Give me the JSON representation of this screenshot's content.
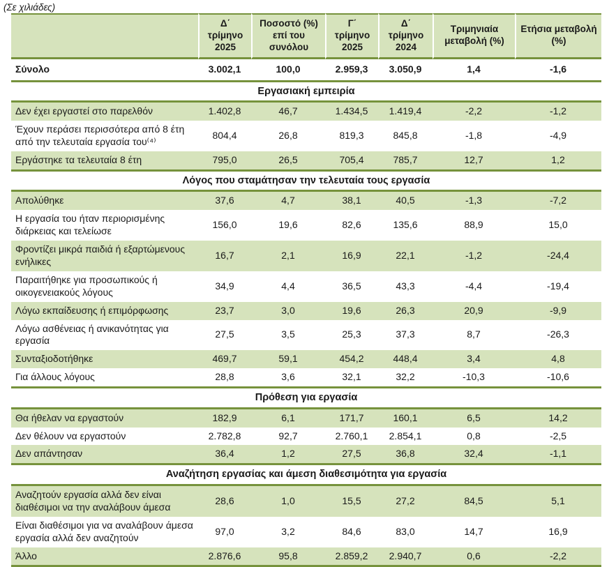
{
  "caption": "(Σε χιλιάδες)",
  "colors": {
    "header_bg": "#d6e3bc",
    "row_highlight_bg": "#d6e3bc",
    "rule_olive": "#76923c",
    "text": "#1a1a1a"
  },
  "columns": [
    "",
    "Δ΄ τρίμηνο 2025",
    "Ποσοστό (%) επί του συνόλου",
    "Γ΄ τρίμηνο 2025",
    "Δ΄ τρίμηνο 2024",
    "Τριμηνιαία μεταβολή (%)",
    "Ετήσια μεταβολή (%)"
  ],
  "total_row": {
    "label": "Σύνολο",
    "values": [
      "3.002,1",
      "100,0",
      "2.959,3",
      "3.050,9",
      "1,4",
      "-1,6"
    ]
  },
  "sections": [
    {
      "title": "Εργασιακή εμπειρία",
      "rows": [
        {
          "label": "Δεν έχει εργαστεί στο παρελθόν",
          "values": [
            "1.402,8",
            "46,7",
            "1.434,5",
            "1.419,4",
            "-2,2",
            "-1,2"
          ]
        },
        {
          "label": "Έχουν περάσει περισσότερα από 8 έτη από την τελευταία εργασία του⁽⁴⁾",
          "values": [
            "804,4",
            "26,8",
            "819,3",
            "845,8",
            "-1,8",
            "-4,9"
          ]
        },
        {
          "label": "Εργάστηκε  τα τελευταία  8 έτη",
          "values": [
            "795,0",
            "26,5",
            "705,4",
            "785,7",
            "12,7",
            "1,2"
          ]
        }
      ]
    },
    {
      "title": "Λόγος που σταμάτησαν την τελευταία τους εργασία",
      "rows": [
        {
          "label": "Απολύθηκε",
          "values": [
            "37,6",
            "4,7",
            "38,1",
            "40,5",
            "-1,3",
            "-7,2"
          ]
        },
        {
          "label": "Η εργασία του ήταν περιορισμένης διάρκειας και τελείωσε",
          "values": [
            "156,0",
            "19,6",
            "82,6",
            "135,6",
            "88,9",
            "15,0"
          ]
        },
        {
          "label": "Φροντίζει μικρά παιδιά ή εξαρτώμενους ενήλικες",
          "values": [
            "16,7",
            "2,1",
            "16,9",
            "22,1",
            "-1,2",
            "-24,4"
          ]
        },
        {
          "label": "Παραιτήθηκε για προσωπικούς ή οικογενειακούς λόγους",
          "values": [
            "34,9",
            "4,4",
            "36,5",
            "43,3",
            "-4,4",
            "-19,4"
          ]
        },
        {
          "label": "Λόγω εκπαίδευσης ή επιμόρφωσης",
          "values": [
            "23,7",
            "3,0",
            "19,6",
            "26,3",
            "20,9",
            "-9,9"
          ]
        },
        {
          "label": "Λόγω ασθένειας ή ανικανότητας για εργασία",
          "values": [
            "27,5",
            "3,5",
            "25,3",
            "37,3",
            "8,7",
            "-26,3"
          ]
        },
        {
          "label": "Συνταξιοδοτήθηκε",
          "values": [
            "469,7",
            "59,1",
            "454,2",
            "448,4",
            "3,4",
            "4,8"
          ]
        },
        {
          "label": "Για άλλους λόγους",
          "values": [
            "28,8",
            "3,6",
            "32,1",
            "32,2",
            "-10,3",
            "-10,6"
          ]
        }
      ]
    },
    {
      "title": "Πρόθεση για εργασία",
      "rows": [
        {
          "label": "Θα ήθελαν να εργαστούν",
          "values": [
            "182,9",
            "6,1",
            "171,7",
            "160,1",
            "6,5",
            "14,2"
          ]
        },
        {
          "label": "Δεν θέλουν  να εργαστούν",
          "values": [
            "2.782,8",
            "92,7",
            "2.760,1",
            "2.854,1",
            "0,8",
            "-2,5"
          ]
        },
        {
          "label": "Δεν απάντησαν",
          "values": [
            "36,4",
            "1,2",
            "27,5",
            "36,8",
            "32,4",
            "-1,1"
          ]
        }
      ]
    },
    {
      "title": "Αναζήτηση εργασίας και άμεση διαθεσιμότητα για εργασία",
      "rows": [
        {
          "label": "Αναζητούν εργασία αλλά δεν είναι διαθέσιμοι να την αναλάβουν άμεσα",
          "values": [
            "28,6",
            "1,0",
            "15,5",
            "27,2",
            "84,5",
            "5,1"
          ]
        },
        {
          "label": "Είναι διαθέσιμοι για να αναλάβουν άμεσα εργασία αλλά δεν αναζητούν",
          "values": [
            "97,0",
            "3,2",
            "84,6",
            "83,0",
            "14,7",
            "16,9"
          ]
        },
        {
          "label": "Άλλο",
          "values": [
            "2.876,6",
            "95,8",
            "2.859,2",
            "2.940,7",
            "0,6",
            "-2,2"
          ]
        }
      ]
    }
  ]
}
